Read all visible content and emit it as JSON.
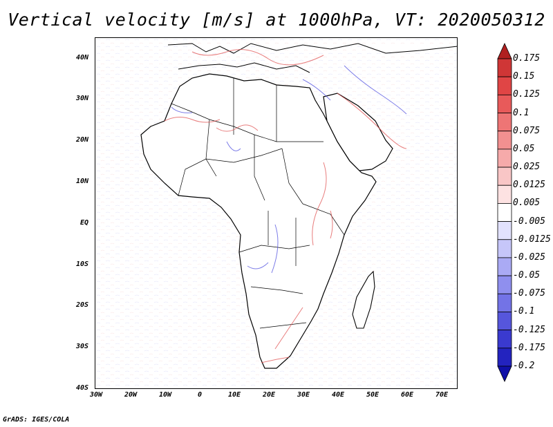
{
  "title": "Vertical velocity [m/s] at 1000hPa, VT: 2020050312",
  "footer": "GrADS: IGES/COLA",
  "axes": {
    "lat_labels": [
      "40N",
      "30N",
      "20N",
      "10N",
      "EQ",
      "10S",
      "20S",
      "30S",
      "40S"
    ],
    "lon_labels": [
      "30W",
      "20W",
      "10W",
      "0",
      "10E",
      "20E",
      "30E",
      "40E",
      "50E",
      "60E",
      "70E"
    ]
  },
  "colorbar": {
    "labels": [
      "0.175",
      "0.15",
      "0.125",
      "0.1",
      "0.075",
      "0.05",
      "0.025",
      "0.0125",
      "0.005",
      "-0.005",
      "-0.0125",
      "-0.025",
      "-0.05",
      "-0.075",
      "-0.1",
      "-0.125",
      "-0.175",
      "-0.2"
    ],
    "colors": [
      "#b02020",
      "#cf3636",
      "#e04545",
      "#e85a5a",
      "#ee7575",
      "#f29090",
      "#f6aaaa",
      "#f9c6c6",
      "#fde2e2",
      "#ffffff",
      "#e2e2fd",
      "#c6c6f9",
      "#aaaaf4",
      "#8f8fee",
      "#7373e6",
      "#5656dc",
      "#3a3acf",
      "#2323bf",
      "#1010a8"
    ]
  },
  "map_data": {
    "domain": {
      "lon_min": -30,
      "lon_max": 75,
      "lat_min": -40,
      "lat_max": 45
    },
    "variable": "Vertical velocity",
    "units": "m/s",
    "level": "1000hPa",
    "valid_time": "2020050312"
  }
}
